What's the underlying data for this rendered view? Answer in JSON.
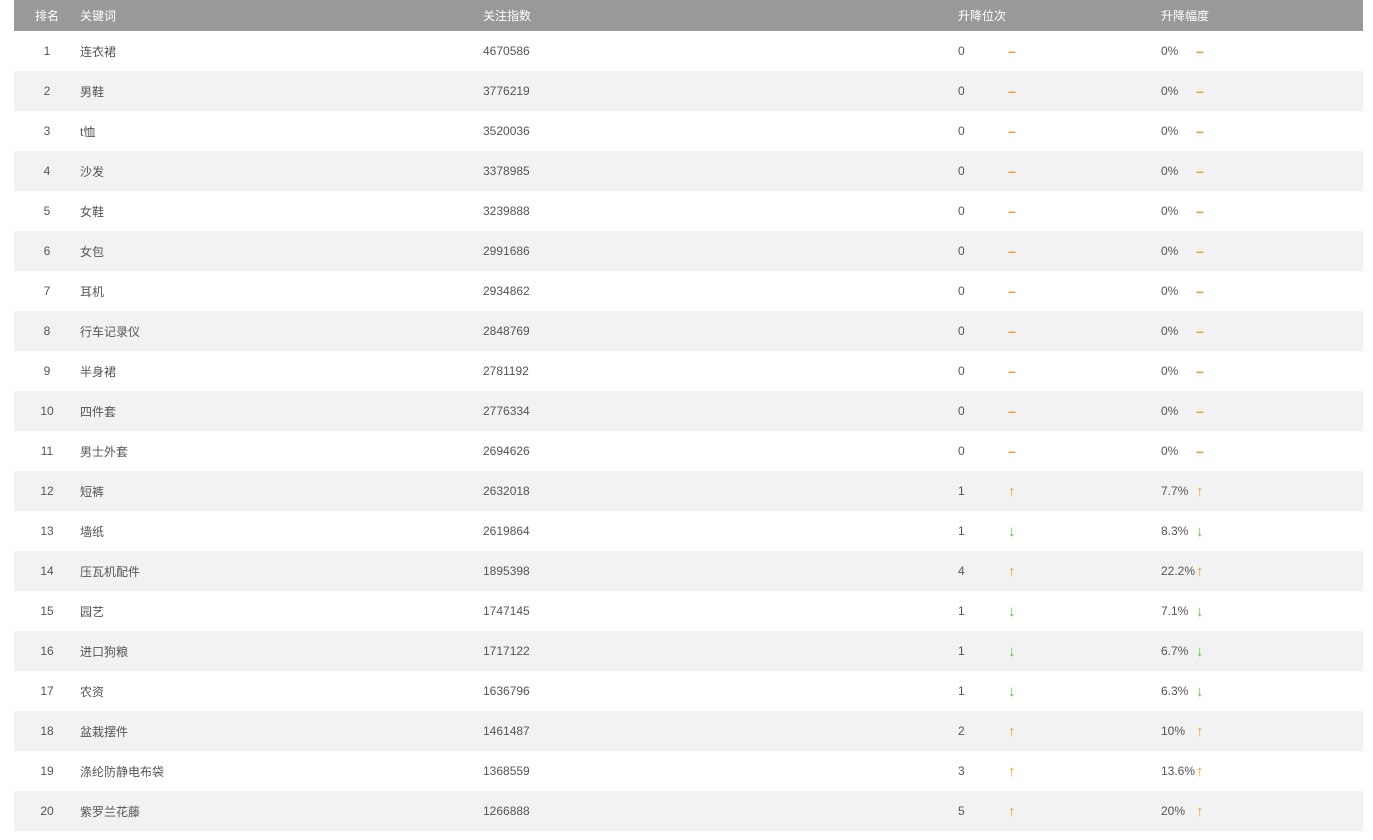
{
  "table": {
    "headers": {
      "rank": "排名",
      "keyword": "关键词",
      "index": "关注指数",
      "rank_change": "升降位次",
      "percent_change": "升降幅度"
    },
    "rows": [
      {
        "rank": "1",
        "keyword": "连衣裙",
        "index": "4670586",
        "change": "0",
        "change_dir": "flat",
        "percent": "0%",
        "percent_dir": "flat"
      },
      {
        "rank": "2",
        "keyword": "男鞋",
        "index": "3776219",
        "change": "0",
        "change_dir": "flat",
        "percent": "0%",
        "percent_dir": "flat"
      },
      {
        "rank": "3",
        "keyword": "t恤",
        "index": "3520036",
        "change": "0",
        "change_dir": "flat",
        "percent": "0%",
        "percent_dir": "flat"
      },
      {
        "rank": "4",
        "keyword": "沙发",
        "index": "3378985",
        "change": "0",
        "change_dir": "flat",
        "percent": "0%",
        "percent_dir": "flat"
      },
      {
        "rank": "5",
        "keyword": "女鞋",
        "index": "3239888",
        "change": "0",
        "change_dir": "flat",
        "percent": "0%",
        "percent_dir": "flat"
      },
      {
        "rank": "6",
        "keyword": "女包",
        "index": "2991686",
        "change": "0",
        "change_dir": "flat",
        "percent": "0%",
        "percent_dir": "flat"
      },
      {
        "rank": "7",
        "keyword": "耳机",
        "index": "2934862",
        "change": "0",
        "change_dir": "flat",
        "percent": "0%",
        "percent_dir": "flat"
      },
      {
        "rank": "8",
        "keyword": "行车记录仪",
        "index": "2848769",
        "change": "0",
        "change_dir": "flat",
        "percent": "0%",
        "percent_dir": "flat"
      },
      {
        "rank": "9",
        "keyword": "半身裙",
        "index": "2781192",
        "change": "0",
        "change_dir": "flat",
        "percent": "0%",
        "percent_dir": "flat"
      },
      {
        "rank": "10",
        "keyword": "四件套",
        "index": "2776334",
        "change": "0",
        "change_dir": "flat",
        "percent": "0%",
        "percent_dir": "flat"
      },
      {
        "rank": "11",
        "keyword": "男士外套",
        "index": "2694626",
        "change": "0",
        "change_dir": "flat",
        "percent": "0%",
        "percent_dir": "flat"
      },
      {
        "rank": "12",
        "keyword": "短裤",
        "index": "2632018",
        "change": "1",
        "change_dir": "up",
        "percent": "7.7%",
        "percent_dir": "up"
      },
      {
        "rank": "13",
        "keyword": "墙纸",
        "index": "2619864",
        "change": "1",
        "change_dir": "down",
        "percent": "8.3%",
        "percent_dir": "down"
      },
      {
        "rank": "14",
        "keyword": "压瓦机配件",
        "index": "1895398",
        "change": "4",
        "change_dir": "up",
        "percent": "22.2%",
        "percent_dir": "up"
      },
      {
        "rank": "15",
        "keyword": "园艺",
        "index": "1747145",
        "change": "1",
        "change_dir": "down",
        "percent": "7.1%",
        "percent_dir": "down"
      },
      {
        "rank": "16",
        "keyword": "进口狗粮",
        "index": "1717122",
        "change": "1",
        "change_dir": "down",
        "percent": "6.7%",
        "percent_dir": "down"
      },
      {
        "rank": "17",
        "keyword": "农资",
        "index": "1636796",
        "change": "1",
        "change_dir": "down",
        "percent": "6.3%",
        "percent_dir": "down"
      },
      {
        "rank": "18",
        "keyword": "盆栽摆件",
        "index": "1461487",
        "change": "2",
        "change_dir": "up",
        "percent": "10%",
        "percent_dir": "up"
      },
      {
        "rank": "19",
        "keyword": "涤纶防静电布袋",
        "index": "1368559",
        "change": "3",
        "change_dir": "up",
        "percent": "13.6%",
        "percent_dir": "up"
      },
      {
        "rank": "20",
        "keyword": "紫罗兰花藤",
        "index": "1266888",
        "change": "5",
        "change_dir": "up",
        "percent": "20%",
        "percent_dir": "up"
      }
    ]
  },
  "glyphs": {
    "up": "↑",
    "down": "↓",
    "flat": "–"
  },
  "colors": {
    "header_bg": "#999999",
    "row_alt_bg": "#f2f2f2",
    "text": "#555555",
    "up": "#f59a23",
    "down": "#54c22e"
  }
}
